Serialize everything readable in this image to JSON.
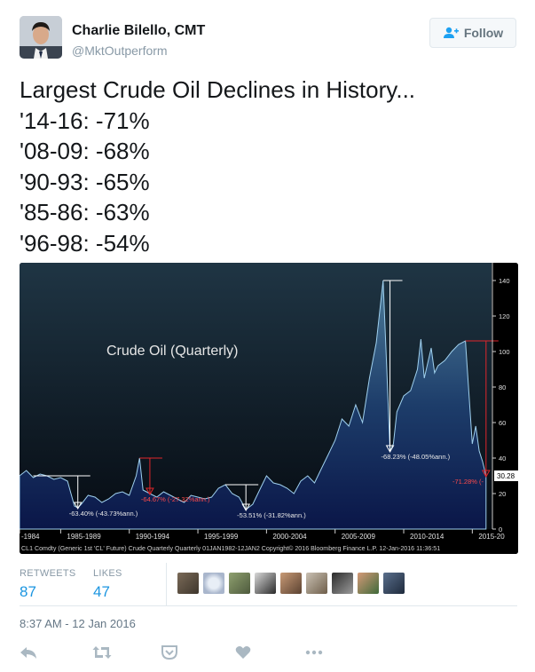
{
  "author": {
    "name": "Charlie Bilello, CMT",
    "handle": "@MktOutperform"
  },
  "follow_button": {
    "label": "Follow",
    "icon": "add-user-icon"
  },
  "tweet": {
    "lines": [
      "Largest Crude Oil Declines in History...",
      "'14-16: -71%",
      "'08-09: -68%",
      "'90-93: -65%",
      "'85-86: -63%",
      "'96-98: -54%"
    ]
  },
  "chart_data": {
    "type": "area",
    "title": "Crude Oil (Quarterly)",
    "x_tick_labels": [
      "-1984",
      "1985-1989",
      "1990-1994",
      "1995-1999",
      "2000-2004",
      "2005-2009",
      "2010-2014",
      "2015-20"
    ],
    "y_ticks": [
      0,
      20,
      40,
      60,
      80,
      100,
      120,
      140
    ],
    "ylim": [
      0,
      150
    ],
    "last_value_label": "30.28",
    "footer_text": "CL1 Comdty (Generic 1st 'CL' Future) Crude Quarterly  Quarterly 01JAN1982-12JAN2  Copyright© 2016 Bloomberg Finance L.P.   12-Jan-2016 11:36:51",
    "series": [
      {
        "x": [
          1982.0,
          1982.5,
          1983.0,
          1983.5,
          1984.0,
          1984.5,
          1985.0,
          1985.5,
          1986.0,
          1986.25,
          1986.5,
          1987.0,
          1987.5,
          1988.0,
          1988.5,
          1989.0,
          1989.5,
          1990.0,
          1990.5,
          1990.75,
          1991.0,
          1991.5,
          1992.0,
          1992.5,
          1993.0,
          1993.5,
          1994.0,
          1994.5,
          1995.0,
          1995.5,
          1996.0,
          1996.5,
          1997.0,
          1997.5,
          1998.0,
          1998.5,
          1999.0,
          1999.5,
          2000.0,
          2000.5,
          2001.0,
          2001.5,
          2002.0,
          2002.5,
          2003.0,
          2003.5,
          2004.0,
          2004.5,
          2005.0,
          2005.5,
          2006.0,
          2006.5,
          2007.0,
          2007.5,
          2008.0,
          2008.5,
          2008.75,
          2009.0,
          2009.25,
          2009.5,
          2010.0,
          2010.5,
          2011.0,
          2011.25,
          2011.5,
          2012.0,
          2012.25,
          2012.5,
          2013.0,
          2013.5,
          2014.0,
          2014.5,
          2015.0,
          2015.25,
          2015.5,
          2015.75,
          2016.0
        ],
        "values": [
          30,
          33,
          29,
          31,
          30,
          28,
          29,
          27,
          13,
          12,
          14,
          19,
          18,
          15,
          17,
          20,
          21,
          19,
          30,
          40,
          22,
          20,
          18,
          21,
          19,
          17,
          15,
          19,
          18,
          17,
          18,
          23,
          25,
          20,
          18,
          11,
          14,
          22,
          30,
          26,
          25,
          23,
          20,
          27,
          30,
          26,
          34,
          42,
          50,
          62,
          58,
          70,
          60,
          85,
          105,
          140,
          93,
          44,
          48,
          66,
          75,
          78,
          90,
          107,
          85,
          102,
          88,
          92,
          95,
          100,
          104,
          106,
          48,
          58,
          44,
          38,
          30
        ]
      }
    ],
    "annotations": [
      {
        "label": "-63.40% (-43.73%ann.)",
        "x": 1986.25,
        "y": 12
      },
      {
        "label": "-64.67% (-27.32%ann.)",
        "x": 1991.5,
        "y": 20
      },
      {
        "label": "-53.51% (-31.82%ann.)",
        "x": 1998.5,
        "y": 11
      },
      {
        "label": "-68.23% (-48.05%ann.)",
        "x": 2009.0,
        "y": 44
      },
      {
        "label": "-71.28% (-",
        "x": 2016.0,
        "y": 30
      }
    ]
  },
  "stats": {
    "retweets_label": "RETWEETS",
    "retweets_value": "87",
    "likes_label": "LIKES",
    "likes_value": "47"
  },
  "timestamp": "8:37 AM - 12 Jan 2016",
  "actions": [
    "reply-icon",
    "retweet-icon",
    "like-icon",
    "more-icon"
  ]
}
